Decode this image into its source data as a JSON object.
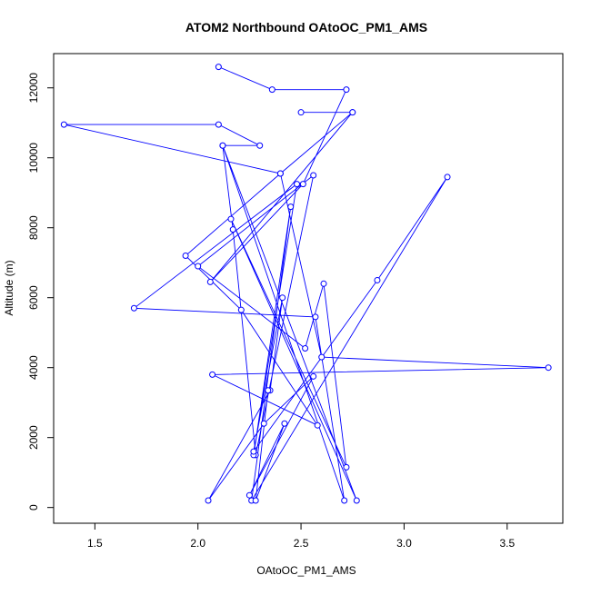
{
  "chart_data": {
    "type": "line",
    "title": "ATOM2 Northbound OAtoOC_PM1_AMS",
    "xlabel": "OAtoOC_PM1_AMS",
    "ylabel": "Altitude (m)",
    "xlim": [
      1.3,
      3.77
    ],
    "ylim": [
      -450,
      12980
    ],
    "xticks": [
      "1.5",
      "2.0",
      "2.5",
      "3.0",
      "3.5"
    ],
    "xtick_values": [
      1.5,
      2.0,
      2.5,
      3.0,
      3.5
    ],
    "yticks": [
      "0",
      "2000",
      "4000",
      "6000",
      "8000",
      "10000",
      "12000"
    ],
    "ytick_values": [
      0,
      2000,
      4000,
      6000,
      8000,
      10000,
      12000
    ],
    "grid": false,
    "series": [
      {
        "color": "#0000ff",
        "marker": "open-circle",
        "points": [
          [
            2.1,
            12600
          ],
          [
            2.36,
            11950
          ],
          [
            2.72,
            11950
          ],
          [
            2.51,
            9250
          ],
          [
            2.06,
            6450
          ],
          [
            2.75,
            11300
          ],
          [
            2.5,
            11300
          ],
          [
            2.75,
            11300
          ],
          [
            2.4,
            9550
          ],
          [
            1.94,
            7200
          ],
          [
            2.21,
            5650
          ],
          [
            2.58,
            2350
          ],
          [
            2.07,
            3800
          ],
          [
            3.7,
            4000
          ],
          [
            2.6,
            4300
          ],
          [
            2.4,
            9550
          ],
          [
            1.35,
            10950
          ],
          [
            2.1,
            10950
          ],
          [
            2.3,
            10350
          ],
          [
            2.12,
            10350
          ],
          [
            2.17,
            7950
          ],
          [
            2.28,
            1500
          ],
          [
            2.56,
            9500
          ],
          [
            2.0,
            6900
          ],
          [
            2.52,
            4550
          ],
          [
            2.61,
            6400
          ],
          [
            2.72,
            1150
          ],
          [
            2.16,
            8250
          ],
          [
            2.77,
            200
          ],
          [
            2.12,
            10350
          ],
          [
            2.71,
            200
          ],
          [
            2.57,
            5450
          ],
          [
            1.69,
            5700
          ],
          [
            2.48,
            9250
          ],
          [
            2.27,
            1500
          ],
          [
            2.45,
            8600
          ],
          [
            2.26,
            200
          ],
          [
            3.21,
            9450
          ],
          [
            2.87,
            6500
          ],
          [
            2.27,
            1600
          ],
          [
            2.41,
            6000
          ],
          [
            2.35,
            3350
          ],
          [
            2.05,
            200
          ],
          [
            2.32,
            2400
          ],
          [
            2.56,
            3750
          ],
          [
            2.25,
            350
          ],
          [
            2.42,
            2400
          ],
          [
            2.28,
            200
          ],
          [
            2.34,
            3350
          ]
        ]
      }
    ]
  }
}
